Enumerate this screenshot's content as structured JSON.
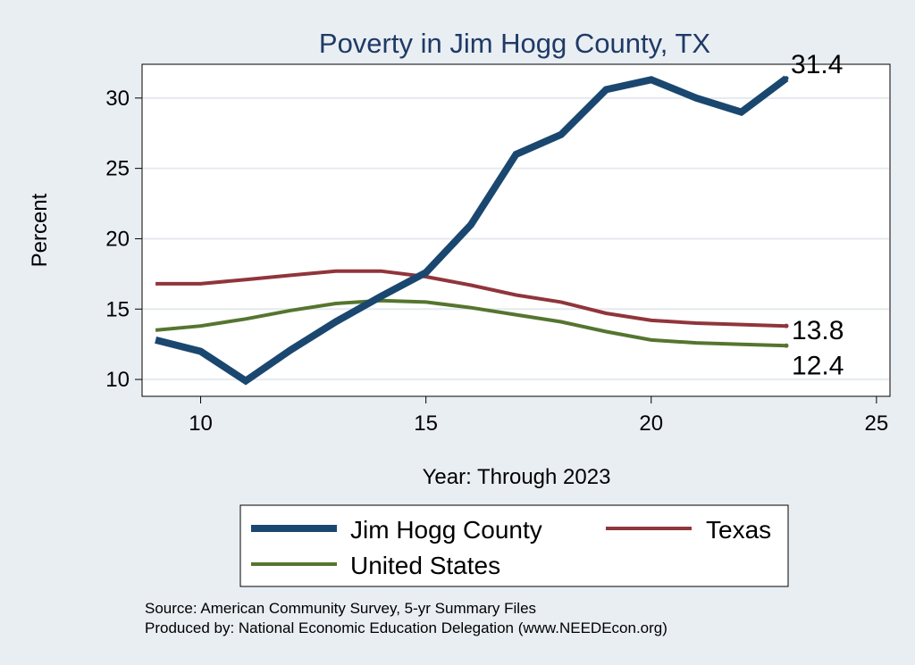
{
  "chart_data": {
    "type": "line",
    "title": "Poverty in Jim Hogg County, TX",
    "xlabel": "Year: Through 2023",
    "ylabel": "Percent",
    "xlim": [
      8.7,
      25.3
    ],
    "ylim": [
      8.8,
      32.4
    ],
    "xticks": [
      10,
      15,
      20,
      25
    ],
    "yticks": [
      10,
      15,
      20,
      25,
      30
    ],
    "grid": true,
    "series": [
      {
        "name": "Jim Hogg County",
        "color": "#1a476f",
        "x": [
          9,
          10,
          11,
          12,
          13,
          14,
          15,
          16,
          17,
          18,
          19,
          20,
          21,
          22,
          23
        ],
        "values": [
          12.8,
          12.0,
          9.9,
          12.1,
          14.1,
          15.9,
          17.6,
          21.0,
          26.0,
          27.4,
          30.6,
          31.3,
          30.0,
          29.0,
          31.4
        ]
      },
      {
        "name": "Texas",
        "color": "#90353b",
        "x": [
          9,
          10,
          11,
          12,
          13,
          14,
          15,
          16,
          17,
          18,
          19,
          20,
          21,
          22,
          23
        ],
        "values": [
          16.8,
          16.8,
          17.1,
          17.4,
          17.7,
          17.7,
          17.3,
          16.7,
          16.0,
          15.5,
          14.7,
          14.2,
          14.0,
          13.9,
          13.8
        ]
      },
      {
        "name": "United States",
        "color": "#55752f",
        "x": [
          9,
          10,
          11,
          12,
          13,
          14,
          15,
          16,
          17,
          18,
          19,
          20,
          21,
          22,
          23
        ],
        "values": [
          13.5,
          13.8,
          14.3,
          14.9,
          15.4,
          15.6,
          15.5,
          15.1,
          14.6,
          14.1,
          13.4,
          12.8,
          12.6,
          12.5,
          12.4
        ]
      }
    ],
    "end_labels": [
      "31.4",
      "13.8",
      "12.4"
    ],
    "legend": {
      "position": "bottom",
      "entries": [
        "Jim Hogg County",
        "Texas",
        "United States"
      ]
    }
  },
  "notes": {
    "source": "Source: American Community Survey, 5-yr Summary Files",
    "produced_by": "Produced by: National Economic Education Delegation (www.NEEDEcon.org)"
  }
}
